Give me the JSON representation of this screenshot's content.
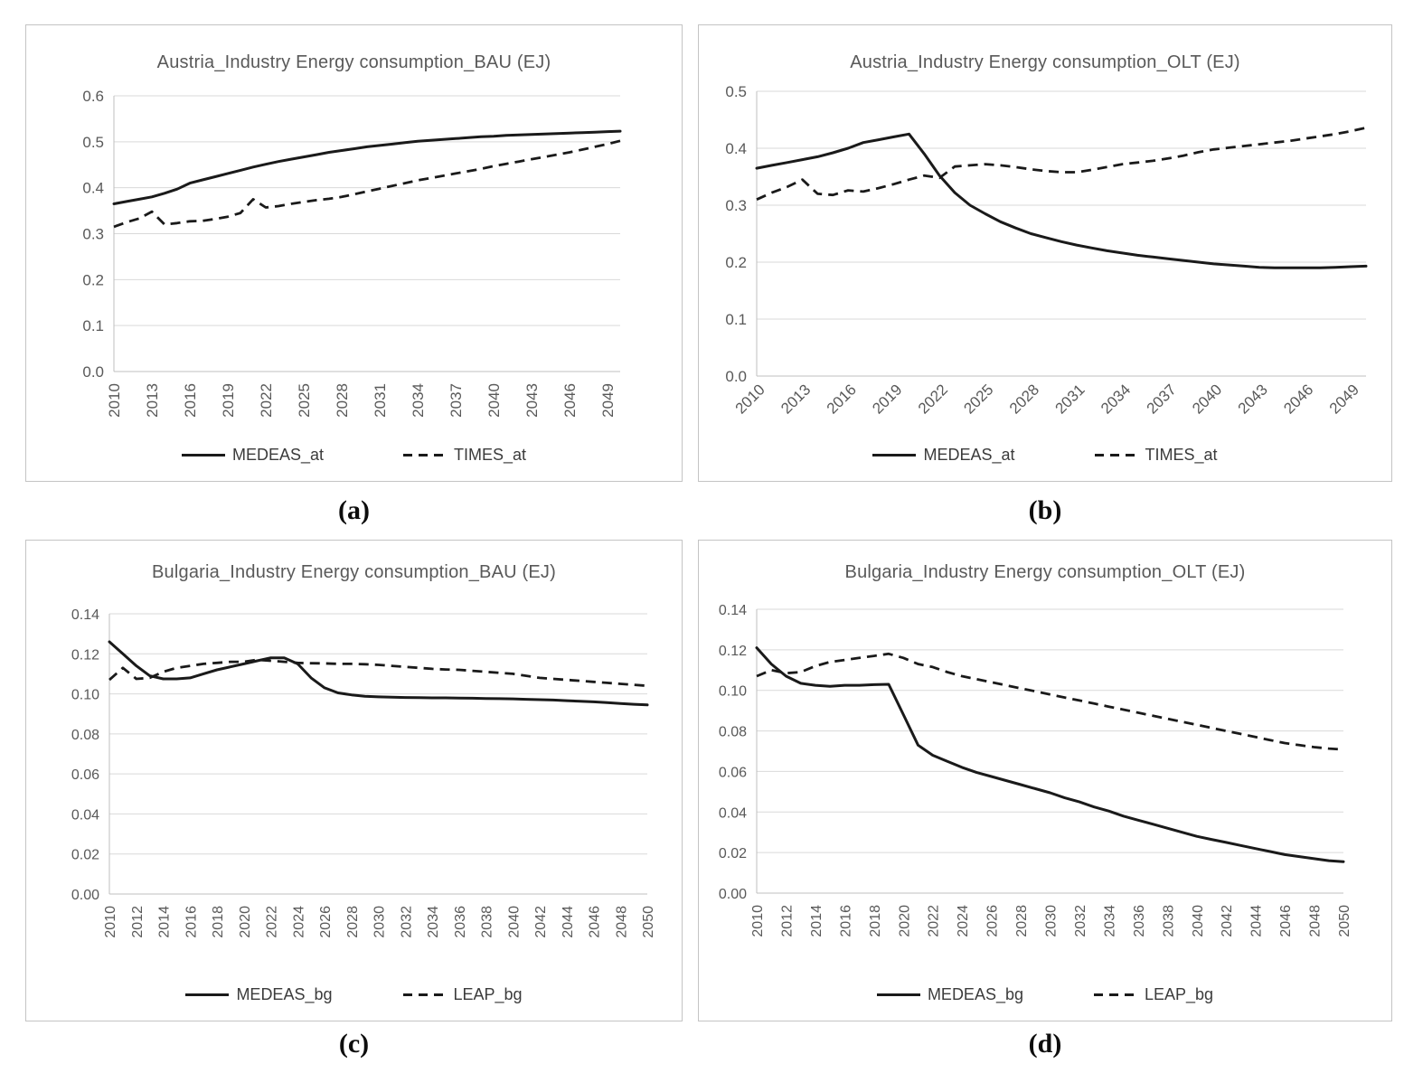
{
  "chart_data": [
    {
      "panel": "a",
      "caption": "(a)",
      "type": "line",
      "title": "Austria_Industry Energy consumption_BAU (EJ)",
      "xlim": [
        2010,
        2050
      ],
      "ylim": [
        0,
        0.6
      ],
      "grid": "horizontal",
      "legend_position": "bottom",
      "x_tick_labels": [
        "2010",
        "2013",
        "2016",
        "2019",
        "2022",
        "2025",
        "2028",
        "2031",
        "2034",
        "2037",
        "2040",
        "2043",
        "2046",
        "2049"
      ],
      "y_tick_labels": [
        "0.0",
        "0.1",
        "0.2",
        "0.3",
        "0.4",
        "0.5",
        "0.6"
      ],
      "series": [
        {
          "name": "MEDEAS_at",
          "style": "solid",
          "color": "#1a1a1a",
          "values": [
            0.365,
            0.37,
            0.375,
            0.38,
            0.388,
            0.397,
            0.41,
            0.417,
            0.424,
            0.431,
            0.438,
            0.445,
            0.451,
            0.457,
            0.462,
            0.467,
            0.472,
            0.477,
            0.481,
            0.485,
            0.489,
            0.492,
            0.495,
            0.498,
            0.501,
            0.503,
            0.505,
            0.507,
            0.509,
            0.511,
            0.512,
            0.514,
            0.515,
            0.516,
            0.517,
            0.518,
            0.519,
            0.52,
            0.521,
            0.522,
            0.523
          ]
        },
        {
          "name": "TIMES_at",
          "style": "dashed",
          "color": "#1a1a1a",
          "values": [
            0.315,
            0.325,
            0.333,
            0.348,
            0.32,
            0.323,
            0.327,
            0.328,
            0.332,
            0.337,
            0.345,
            0.375,
            0.357,
            0.36,
            0.365,
            0.369,
            0.373,
            0.376,
            0.38,
            0.386,
            0.392,
            0.398,
            0.404,
            0.41,
            0.416,
            0.421,
            0.426,
            0.431,
            0.436,
            0.441,
            0.447,
            0.452,
            0.457,
            0.462,
            0.467,
            0.472,
            0.477,
            0.483,
            0.489,
            0.495,
            0.502
          ]
        }
      ]
    },
    {
      "panel": "b",
      "caption": "(b)",
      "type": "line",
      "title": "Austria_Industry Energy consumption_OLT (EJ)",
      "xlim": [
        2010,
        2050
      ],
      "ylim": [
        0,
        0.5
      ],
      "grid": "horizontal",
      "legend_position": "bottom",
      "x_tick_labels": [
        "2010",
        "2013",
        "2016",
        "2019",
        "2022",
        "2025",
        "2028",
        "2031",
        "2034",
        "2037",
        "2040",
        "2043",
        "2046",
        "2049"
      ],
      "y_tick_labels": [
        "0.0",
        "0.1",
        "0.2",
        "0.3",
        "0.4",
        "0.5"
      ],
      "series": [
        {
          "name": "MEDEAS_at",
          "style": "solid",
          "color": "#1a1a1a",
          "values": [
            0.365,
            0.37,
            0.375,
            0.38,
            0.385,
            0.392,
            0.4,
            0.41,
            0.415,
            0.42,
            0.425,
            0.39,
            0.352,
            0.322,
            0.3,
            0.285,
            0.271,
            0.26,
            0.25,
            0.243,
            0.236,
            0.23,
            0.225,
            0.22,
            0.216,
            0.212,
            0.209,
            0.206,
            0.203,
            0.2,
            0.197,
            0.195,
            0.193,
            0.191,
            0.19,
            0.19,
            0.19,
            0.19,
            0.191,
            0.192,
            0.193
          ]
        },
        {
          "name": "TIMES_at",
          "style": "dashed",
          "color": "#1a1a1a",
          "values": [
            0.31,
            0.322,
            0.332,
            0.345,
            0.32,
            0.318,
            0.326,
            0.324,
            0.33,
            0.337,
            0.345,
            0.352,
            0.348,
            0.368,
            0.37,
            0.372,
            0.37,
            0.367,
            0.363,
            0.36,
            0.358,
            0.358,
            0.362,
            0.367,
            0.372,
            0.375,
            0.378,
            0.382,
            0.387,
            0.393,
            0.398,
            0.401,
            0.404,
            0.407,
            0.41,
            0.413,
            0.417,
            0.421,
            0.425,
            0.43,
            0.436
          ]
        }
      ]
    },
    {
      "panel": "c",
      "caption": "(c)",
      "type": "line",
      "title": "Bulgaria_Industry Energy consumption_BAU (EJ)",
      "xlim": [
        2010,
        2050
      ],
      "ylim": [
        0,
        0.14
      ],
      "grid": "horizontal",
      "legend_position": "bottom",
      "x_tick_labels": [
        "2010",
        "2012",
        "2014",
        "2016",
        "2018",
        "2020",
        "2022",
        "2024",
        "2026",
        "2028",
        "2030",
        "2032",
        "2034",
        "2036",
        "2038",
        "2040",
        "2042",
        "2044",
        "2046",
        "2048",
        "2050"
      ],
      "y_tick_labels": [
        "0.00",
        "0.02",
        "0.04",
        "0.06",
        "0.08",
        "0.10",
        "0.12",
        "0.14"
      ],
      "series": [
        {
          "name": "MEDEAS_bg",
          "style": "solid",
          "color": "#1a1a1a",
          "values": [
            0.126,
            0.12,
            0.114,
            0.109,
            0.1075,
            0.1075,
            0.108,
            0.11,
            0.112,
            0.1135,
            0.115,
            0.1165,
            0.118,
            0.118,
            0.115,
            0.108,
            0.103,
            0.1005,
            0.0995,
            0.0988,
            0.0985,
            0.0983,
            0.0982,
            0.0981,
            0.098,
            0.098,
            0.0979,
            0.0978,
            0.0977,
            0.0976,
            0.0975,
            0.0973,
            0.0971,
            0.0969,
            0.0966,
            0.0963,
            0.096,
            0.0956,
            0.0952,
            0.0948,
            0.0945
          ]
        },
        {
          "name": "LEAP_bg",
          "style": "dashed",
          "color": "#1a1a1a",
          "values": [
            0.107,
            0.113,
            0.1075,
            0.108,
            0.111,
            0.113,
            0.114,
            0.115,
            0.1155,
            0.116,
            0.116,
            0.117,
            0.1165,
            0.116,
            0.1155,
            0.1153,
            0.1152,
            0.115,
            0.115,
            0.1148,
            0.1145,
            0.114,
            0.1135,
            0.113,
            0.1125,
            0.1122,
            0.112,
            0.1115,
            0.111,
            0.1105,
            0.11,
            0.109,
            0.108,
            0.1075,
            0.107,
            0.1065,
            0.106,
            0.1055,
            0.105,
            0.1045,
            0.104
          ]
        }
      ]
    },
    {
      "panel": "d",
      "caption": "(d)",
      "type": "line",
      "title": "Bulgaria_Industry Energy consumption_OLT (EJ)",
      "xlim": [
        2010,
        2050
      ],
      "ylim": [
        0,
        0.14
      ],
      "grid": "horizontal",
      "legend_position": "bottom",
      "x_tick_labels": [
        "2010",
        "2012",
        "2014",
        "2016",
        "2018",
        "2020",
        "2022",
        "2024",
        "2026",
        "2028",
        "2030",
        "2032",
        "2034",
        "2036",
        "2038",
        "2040",
        "2042",
        "2044",
        "2046",
        "2048",
        "2050"
      ],
      "y_tick_labels": [
        "0.00",
        "0.02",
        "0.04",
        "0.06",
        "0.08",
        "0.10",
        "0.12",
        "0.14"
      ],
      "series": [
        {
          "name": "MEDEAS_bg",
          "style": "solid",
          "color": "#1a1a1a",
          "values": [
            0.121,
            0.113,
            0.107,
            0.1035,
            0.1025,
            0.102,
            0.1025,
            0.1025,
            0.1028,
            0.103,
            0.088,
            0.073,
            0.068,
            0.065,
            0.062,
            0.0595,
            0.0575,
            0.0555,
            0.0535,
            0.0515,
            0.0495,
            0.047,
            0.045,
            0.0425,
            0.0405,
            0.038,
            0.036,
            0.034,
            0.032,
            0.03,
            0.028,
            0.0265,
            0.025,
            0.0235,
            0.022,
            0.0205,
            0.019,
            0.018,
            0.017,
            0.016,
            0.0155
          ]
        },
        {
          "name": "LEAP_bg",
          "style": "dashed",
          "color": "#1a1a1a",
          "values": [
            0.107,
            0.11,
            0.1085,
            0.109,
            0.112,
            0.114,
            0.115,
            0.116,
            0.117,
            0.118,
            0.116,
            0.113,
            0.1115,
            0.109,
            0.107,
            0.1055,
            0.104,
            0.1025,
            0.101,
            0.0995,
            0.098,
            0.0965,
            0.095,
            0.0935,
            0.092,
            0.0905,
            0.089,
            0.0875,
            0.086,
            0.0845,
            0.083,
            0.0815,
            0.08,
            0.0785,
            0.077,
            0.0755,
            0.074,
            0.073,
            0.072,
            0.0713,
            0.0708
          ]
        }
      ]
    }
  ],
  "style": {
    "line_color": "#1a1a1a",
    "gridline_color": "#d9d9d9",
    "axis_color": "#bfbfbf",
    "label_color": "#595959",
    "legend_text_color": "#3b3b3b"
  }
}
